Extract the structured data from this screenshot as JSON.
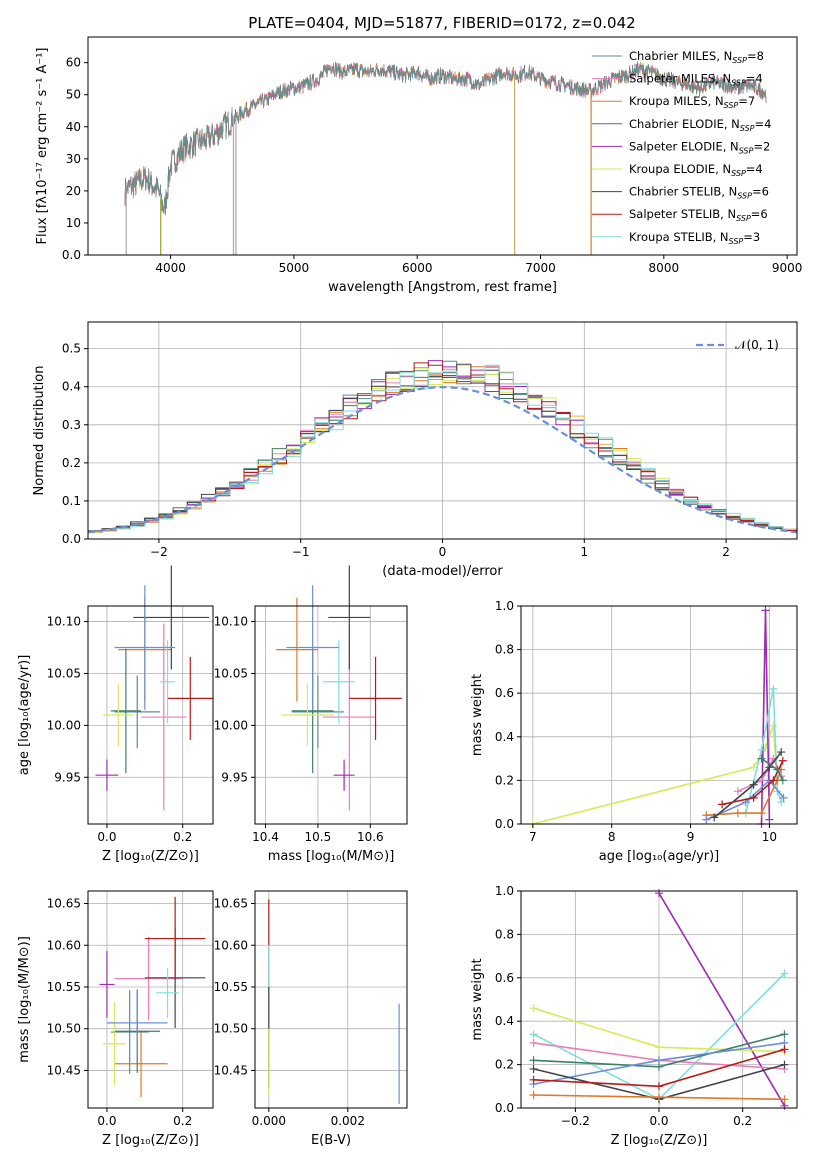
{
  "figure": {
    "title": "PLATE=0404, MJD=51877, FIBERID=0172, z=0.042"
  },
  "legend_entries": [
    {
      "label": "Chabrier MILES, N",
      "sub": "SSP",
      "tail": "=8",
      "color": "#5a8f8c"
    },
    {
      "label": "Salpeter MILES, N",
      "sub": "SSP",
      "tail": "=4",
      "color": "#e87fb8"
    },
    {
      "label": "Kroupa MILES, N",
      "sub": "SSP",
      "tail": "=7",
      "color": "#e0782a"
    },
    {
      "label": "Chabrier ELODIE, N",
      "sub": "SSP",
      "tail": "=4",
      "color": "#3f7f6a"
    },
    {
      "label": "Salpeter ELODIE, N",
      "sub": "SSP",
      "tail": "=2",
      "color": "#9b2eb0"
    },
    {
      "label": "Kroupa ELODIE, N",
      "sub": "SSP",
      "tail": "=4",
      "color": "#d6ea5a"
    },
    {
      "label": "Chabrier STELIB, N",
      "sub": "SSP",
      "tail": "=6",
      "color": "#444444"
    },
    {
      "label": "Salpeter STELIB, N",
      "sub": "SSP",
      "tail": "=6",
      "color": "#b81a1a"
    },
    {
      "label": "Kroupa STELIB, N",
      "sub": "SSP",
      "tail": "=3",
      "color": "#7fdede"
    }
  ],
  "chart_data": [
    {
      "id": "spectrum",
      "type": "line",
      "xlabel": "wavelength [Angstrom, rest frame]",
      "ylabel": "Flux [fλ10⁻¹⁷ erg cm⁻² s⁻¹ A⁻¹]",
      "xlim": [
        3330,
        9080
      ],
      "ylim": [
        0,
        68
      ],
      "xticks": [
        4000,
        5000,
        6000,
        7000,
        8000,
        9000
      ],
      "yticks": [
        0,
        10,
        20,
        30,
        40,
        50,
        60
      ],
      "continuum": [
        [
          3630,
          20
        ],
        [
          3700,
          22
        ],
        [
          3800,
          24
        ],
        [
          3900,
          20
        ],
        [
          3950,
          14
        ],
        [
          4000,
          28
        ],
        [
          4100,
          33
        ],
        [
          4200,
          35
        ],
        [
          4300,
          36
        ],
        [
          4400,
          39
        ],
        [
          4500,
          42
        ],
        [
          4600,
          45
        ],
        [
          4700,
          47
        ],
        [
          4800,
          49
        ],
        [
          4900,
          51
        ],
        [
          5000,
          52
        ],
        [
          5100,
          53
        ],
        [
          5200,
          55
        ],
        [
          5300,
          59
        ],
        [
          5400,
          57
        ],
        [
          5500,
          58
        ],
        [
          5600,
          57
        ],
        [
          5700,
          58
        ],
        [
          5800,
          57
        ],
        [
          5900,
          56
        ],
        [
          6000,
          57
        ],
        [
          6100,
          55
        ],
        [
          6200,
          56
        ],
        [
          6300,
          55
        ],
        [
          6400,
          55
        ],
        [
          6500,
          53
        ],
        [
          6600,
          55
        ],
        [
          6700,
          57
        ],
        [
          6800,
          56
        ],
        [
          6900,
          57
        ],
        [
          7000,
          55
        ],
        [
          7100,
          54
        ],
        [
          7200,
          53
        ],
        [
          7300,
          52
        ],
        [
          7400,
          51
        ],
        [
          7500,
          53
        ],
        [
          7600,
          55
        ],
        [
          7700,
          56
        ],
        [
          7800,
          58
        ],
        [
          7900,
          57
        ],
        [
          8000,
          55
        ],
        [
          8100,
          54
        ],
        [
          8200,
          53
        ],
        [
          8300,
          52
        ],
        [
          8400,
          54
        ],
        [
          8500,
          53
        ],
        [
          8600,
          52
        ],
        [
          8700,
          53
        ],
        [
          8800,
          51
        ],
        [
          8830,
          50
        ]
      ],
      "masked_drops": [
        [
          3640,
          "#aaaaaa"
        ],
        [
          3920,
          "#a0a020"
        ],
        [
          4510,
          "#aaaaaa"
        ],
        [
          4530,
          "#aaaaaa"
        ],
        [
          6790,
          "#c0b060"
        ],
        [
          7410,
          "#e0782a"
        ]
      ]
    },
    {
      "id": "residuals",
      "type": "histogram",
      "xlabel": "(data-model)/error",
      "ylabel": "Normed distribution",
      "xlim": [
        -2.5,
        2.5
      ],
      "ylim": [
        0,
        0.57
      ],
      "xticks": [
        -2,
        -1,
        0,
        1,
        2
      ],
      "yticks": [
        0.0,
        0.1,
        0.2,
        0.3,
        0.4,
        0.5
      ],
      "reference_curve": "𝒩(0, 1)",
      "bin_width": 0.1
    },
    {
      "id": "age-vs-Z",
      "type": "errorbar",
      "xlabel": "Z [log₁₀(Z/Z⊙)]",
      "ylabel": "age  [log₁₀(age/yr)]",
      "xlim": [
        -0.05,
        0.28
      ],
      "ylim": [
        9.905,
        10.115
      ],
      "xticks": [
        0.0,
        0.2
      ],
      "yticks": [
        9.95,
        10.0,
        10.05,
        10.1
      ],
      "points": [
        {
          "x": 0.08,
          "y": 10.013,
          "xe": 0.06,
          "ye": 0.035,
          "color": "#5a8f8c"
        },
        {
          "x": 0.15,
          "y": 10.008,
          "xe": 0.06,
          "ye": 0.09,
          "color": "#e87fb8"
        },
        {
          "x": 0.1,
          "y": 10.073,
          "xe": 0.07,
          "ye": 0.05,
          "color": "#e0782a"
        },
        {
          "x": 0.05,
          "y": 10.014,
          "xe": 0.04,
          "ye": 0.06,
          "color": "#3f7f6a"
        },
        {
          "x": 0.0,
          "y": 9.952,
          "xe": 0.03,
          "ye": 0.015,
          "color": "#9b2eb0"
        },
        {
          "x": 0.03,
          "y": 10.01,
          "xe": 0.04,
          "ye": 0.03,
          "color": "#d6ea5a"
        },
        {
          "x": 0.17,
          "y": 10.104,
          "xe": 0.1,
          "ye": 0.05,
          "color": "#444444"
        },
        {
          "x": 0.22,
          "y": 10.026,
          "xe": 0.06,
          "ye": 0.04,
          "color": "#b81a1a"
        },
        {
          "x": 0.16,
          "y": 10.042,
          "xe": 0.02,
          "ye": 0.04,
          "color": "#7fdede"
        },
        {
          "x": 0.1,
          "y": 10.075,
          "xe": 0.08,
          "ye": 0.06,
          "color": "#6a8fd8"
        }
      ]
    },
    {
      "id": "age-vs-mass",
      "type": "errorbar",
      "xlabel": "mass [log₁₀(M/M⊙)]",
      "ylabel": "",
      "xlim": [
        10.38,
        10.67
      ],
      "ylim": [
        9.905,
        10.115
      ],
      "xticks": [
        10.4,
        10.5,
        10.6
      ],
      "yticks": [
        9.95,
        10.0,
        10.05,
        10.1
      ],
      "points": [
        {
          "x": 10.5,
          "y": 10.013,
          "xe": 0.05,
          "ye": 0.035,
          "color": "#5a8f8c"
        },
        {
          "x": 10.56,
          "y": 10.008,
          "xe": 0.05,
          "ye": 0.09,
          "color": "#e87fb8"
        },
        {
          "x": 10.46,
          "y": 10.073,
          "xe": 0.04,
          "ye": 0.05,
          "color": "#e0782a"
        },
        {
          "x": 10.49,
          "y": 10.014,
          "xe": 0.04,
          "ye": 0.06,
          "color": "#3f7f6a"
        },
        {
          "x": 10.55,
          "y": 9.952,
          "xe": 0.02,
          "ye": 0.015,
          "color": "#9b2eb0"
        },
        {
          "x": 10.48,
          "y": 10.01,
          "xe": 0.05,
          "ye": 0.03,
          "color": "#d6ea5a"
        },
        {
          "x": 10.56,
          "y": 10.104,
          "xe": 0.04,
          "ye": 0.05,
          "color": "#444444"
        },
        {
          "x": 10.61,
          "y": 10.026,
          "xe": 0.05,
          "ye": 0.04,
          "color": "#b81a1a"
        },
        {
          "x": 10.54,
          "y": 10.042,
          "xe": 0.03,
          "ye": 0.04,
          "color": "#7fdede"
        },
        {
          "x": 10.49,
          "y": 10.075,
          "xe": 0.05,
          "ye": 0.06,
          "color": "#6a8fd8"
        }
      ]
    },
    {
      "id": "massweight-vs-age",
      "type": "line",
      "xlabel": "age  [log₁₀(age/yr)]",
      "ylabel": "mass weight",
      "xlim": [
        6.85,
        10.35
      ],
      "ylim": [
        0,
        1.0
      ],
      "xticks": [
        7,
        8,
        9,
        10
      ],
      "yticks": [
        0.0,
        0.2,
        0.4,
        0.6,
        0.8,
        1.0
      ],
      "series": [
        {
          "color": "#d6ea5a",
          "x": [
            7.0,
            9.8,
            9.95,
            10.05,
            10.1
          ],
          "y": [
            0.0,
            0.26,
            0.35,
            0.45,
            0.2
          ]
        },
        {
          "color": "#9b2eb0",
          "x": [
            9.9,
            9.95,
            10.0
          ],
          "y": [
            0.0,
            0.98,
            0.02
          ]
        },
        {
          "color": "#7fdede",
          "x": [
            9.7,
            9.9,
            10.05,
            10.1,
            10.15
          ],
          "y": [
            0.05,
            0.34,
            0.62,
            0.15,
            0.1
          ]
        },
        {
          "color": "#e0782a",
          "x": [
            9.2,
            9.6,
            9.9,
            10.1,
            10.15
          ],
          "y": [
            0.04,
            0.05,
            0.05,
            0.2,
            0.25
          ]
        },
        {
          "color": "#e87fb8",
          "x": [
            9.6,
            9.9,
            10.05,
            10.15
          ],
          "y": [
            0.15,
            0.2,
            0.3,
            0.22
          ]
        },
        {
          "color": "#6a8fd8",
          "x": [
            9.2,
            9.7,
            10.0,
            10.18
          ],
          "y": [
            0.02,
            0.1,
            0.2,
            0.12
          ]
        },
        {
          "color": "#444444",
          "x": [
            9.3,
            9.8,
            10.0,
            10.15
          ],
          "y": [
            0.03,
            0.18,
            0.26,
            0.33
          ]
        },
        {
          "color": "#b81a1a",
          "x": [
            9.4,
            9.8,
            10.05,
            10.17
          ],
          "y": [
            0.09,
            0.12,
            0.2,
            0.29
          ]
        },
        {
          "color": "#3f7f6a",
          "x": [
            9.9,
            10.1,
            10.17
          ],
          "y": [
            0.3,
            0.25,
            0.2
          ]
        }
      ]
    },
    {
      "id": "mass-vs-Z",
      "type": "errorbar",
      "xlabel": "Z [log₁₀(Z/Z⊙)]",
      "ylabel": "mass [log₁₀(M/M⊙)]",
      "xlim": [
        -0.05,
        0.28
      ],
      "ylim": [
        10.405,
        10.665
      ],
      "xticks": [
        0.0,
        0.2
      ],
      "yticks": [
        10.45,
        10.5,
        10.55,
        10.6,
        10.65
      ],
      "points": [
        {
          "x": 0.06,
          "y": 10.496,
          "xe": 0.05,
          "ye": 0.05,
          "color": "#5a8f8c"
        },
        {
          "x": 0.11,
          "y": 10.56,
          "xe": 0.09,
          "ye": 0.05,
          "color": "#e87fb8"
        },
        {
          "x": 0.09,
          "y": 10.458,
          "xe": 0.07,
          "ye": 0.04,
          "color": "#e0782a"
        },
        {
          "x": 0.08,
          "y": 10.497,
          "xe": 0.06,
          "ye": 0.05,
          "color": "#3f7f6a"
        },
        {
          "x": 0.0,
          "y": 10.553,
          "xe": 0.02,
          "ye": 0.04,
          "color": "#9b2eb0"
        },
        {
          "x": 0.02,
          "y": 10.482,
          "xe": 0.03,
          "ye": 0.05,
          "color": "#d6ea5a"
        },
        {
          "x": 0.18,
          "y": 10.561,
          "xe": 0.08,
          "ye": 0.06,
          "color": "#444444"
        },
        {
          "x": 0.18,
          "y": 10.608,
          "xe": 0.08,
          "ye": 0.05,
          "color": "#b81a1a"
        },
        {
          "x": 0.16,
          "y": 10.543,
          "xe": 0.03,
          "ye": 0.03,
          "color": "#7fdede"
        },
        {
          "x": 0.08,
          "y": 10.507,
          "xe": 0.08,
          "ye": 0.04,
          "color": "#6a8fd8"
        }
      ]
    },
    {
      "id": "mass-vs-EBV",
      "type": "errorbar",
      "xlabel": "E(B-V)",
      "ylabel": "",
      "xlim": [
        -0.00035,
        0.0035
      ],
      "ylim": [
        10.405,
        10.665
      ],
      "xticks": [
        0.0,
        0.002
      ],
      "yticks": [
        10.45,
        10.5,
        10.55,
        10.6,
        10.65
      ],
      "points": [
        {
          "x": 0.0,
          "y": 10.6,
          "xe": 0.0,
          "ye": 0.055,
          "color": "#b81a1a"
        },
        {
          "x": 0.0,
          "y": 10.56,
          "xe": 0.0,
          "ye": 0.04,
          "color": "#e87fb8"
        },
        {
          "x": 0.0,
          "y": 10.53,
          "xe": 0.0,
          "ye": 0.07,
          "color": "#7fdede"
        },
        {
          "x": 0.0,
          "y": 10.49,
          "xe": 0.0,
          "ye": 0.06,
          "color": "#444444"
        },
        {
          "x": 0.0,
          "y": 10.46,
          "xe": 0.0,
          "ye": 0.04,
          "color": "#d6ea5a"
        },
        {
          "x": 0.0033,
          "y": 10.47,
          "xe": 0.0,
          "ye": 0.06,
          "color": "#6a8fd8"
        }
      ]
    },
    {
      "id": "massweight-vs-Z",
      "type": "line",
      "xlabel": "Z [log₁₀(Z/Z⊙)]",
      "ylabel": "mass weight",
      "xlim": [
        -0.33,
        0.33
      ],
      "ylim": [
        0,
        1.0
      ],
      "xticks": [
        -0.2,
        0.0,
        0.2
      ],
      "yticks": [
        0.0,
        0.2,
        0.4,
        0.6,
        0.8,
        1.0
      ],
      "series": [
        {
          "color": "#9b2eb0",
          "x": [
            0.0,
            0.3
          ],
          "y": [
            0.99,
            0.01
          ]
        },
        {
          "color": "#7fdede",
          "x": [
            -0.3,
            0.0,
            0.3
          ],
          "y": [
            0.34,
            0.04,
            0.62
          ]
        },
        {
          "color": "#d6ea5a",
          "x": [
            -0.3,
            0.0,
            0.3
          ],
          "y": [
            0.46,
            0.28,
            0.26
          ]
        },
        {
          "color": "#e87fb8",
          "x": [
            -0.3,
            0.0,
            0.3
          ],
          "y": [
            0.3,
            0.22,
            0.18
          ]
        },
        {
          "color": "#3f7f6a",
          "x": [
            -0.3,
            0.0,
            0.3
          ],
          "y": [
            0.22,
            0.19,
            0.34
          ]
        },
        {
          "color": "#6a8fd8",
          "x": [
            -0.3,
            0.0,
            0.3
          ],
          "y": [
            0.11,
            0.22,
            0.3
          ]
        },
        {
          "color": "#444444",
          "x": [
            -0.3,
            0.0,
            0.3
          ],
          "y": [
            0.18,
            0.04,
            0.2
          ]
        },
        {
          "color": "#b81a1a",
          "x": [
            -0.3,
            0.0,
            0.3
          ],
          "y": [
            0.13,
            0.1,
            0.27
          ]
        },
        {
          "color": "#e0782a",
          "x": [
            -0.3,
            0.0,
            0.3
          ],
          "y": [
            0.06,
            0.05,
            0.04
          ]
        }
      ]
    }
  ]
}
